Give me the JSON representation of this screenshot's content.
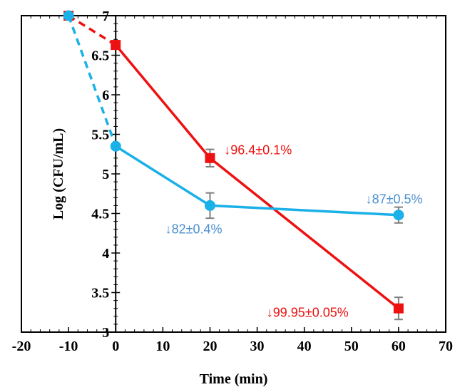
{
  "chart_data": {
    "type": "line",
    "xlabel": "Time (min)",
    "ylabel": "Log (CFU/mL)",
    "xlim": [
      -20,
      70
    ],
    "ylim": [
      3,
      7
    ],
    "xticks": [
      -20,
      -10,
      0,
      10,
      20,
      30,
      40,
      50,
      60,
      70
    ],
    "yticks": [
      3,
      3.5,
      4,
      4.5,
      5,
      5.5,
      6,
      6.5,
      7
    ],
    "xtick_labels": [
      "-20",
      "-10",
      "0",
      "10",
      "20",
      "30",
      "40",
      "50",
      "60",
      "70"
    ],
    "ytick_labels": [
      "3",
      "3.5",
      "4",
      "4.5",
      "5",
      "5.5",
      "6",
      "6.5",
      "7"
    ],
    "grid": false,
    "legend": "none",
    "colors": {
      "red": "#ee1111",
      "blue": "#1ab0e8",
      "blue_text": "#4a8fd0",
      "error_bar": "#7f7f7f"
    },
    "series": [
      {
        "color": "#ee1111",
        "marker": "square",
        "x": [
          -10,
          0,
          20,
          60
        ],
        "y": [
          7,
          6.63,
          5.2,
          3.3
        ],
        "yerr": [
          0,
          0,
          0.11,
          0.14
        ],
        "dashed_segments": [
          0
        ]
      },
      {
        "color": "#1ab0e8",
        "marker": "circle",
        "x": [
          -10,
          0,
          20,
          60
        ],
        "y": [
          7,
          5.35,
          4.6,
          4.48
        ],
        "yerr": [
          0,
          0,
          0.16,
          0.1
        ],
        "dashed_segments": [
          0
        ]
      }
    ],
    "annotations": [
      {
        "text": "↓96.4±0.1%",
        "x": 23,
        "y": 5.3,
        "color": "#ee1111"
      },
      {
        "text": "↓99.95±0.05%",
        "x": 32,
        "y": 3.25,
        "color": "#ee1111"
      },
      {
        "text": "↓82±0.4%",
        "x": 10.5,
        "y": 4.3,
        "color": "#4a8fd0"
      },
      {
        "text": "↓87±0.5%",
        "x": 53,
        "y": 4.68,
        "color": "#4a8fd0"
      }
    ]
  }
}
